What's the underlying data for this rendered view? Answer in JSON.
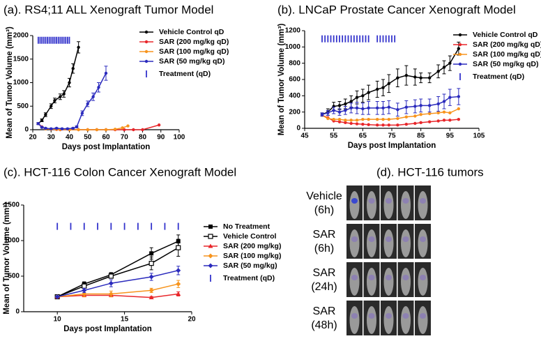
{
  "chart_data": [
    {
      "type": "line",
      "title": "(a). RS4;11 ALL Xenograft Tumor Model",
      "x_label": "Days post Implantation",
      "y_label": "Mean of Tumor Volume (mm³)",
      "xlim": [
        20,
        100
      ],
      "xticks": [
        20,
        30,
        40,
        50,
        60,
        70,
        80,
        90,
        100
      ],
      "ylim": [
        0,
        2000
      ],
      "yticks": [
        0,
        500,
        1000,
        1500,
        2000
      ],
      "series": [
        {
          "name": "Vehicle Control qD",
          "color": "#000000",
          "marker": "circle",
          "x": [
            23,
            25,
            27,
            30,
            32,
            35,
            37,
            40,
            42,
            45
          ],
          "values": [
            130,
            200,
            320,
            500,
            620,
            700,
            760,
            1000,
            1300,
            1750
          ],
          "errors": [
            20,
            30,
            40,
            50,
            50,
            60,
            70,
            90,
            100,
            120
          ]
        },
        {
          "name": "SAR (200 mg/kg qD)",
          "color": "#e8262a",
          "marker": "circle",
          "x": [
            23,
            25,
            27,
            30,
            33,
            35,
            40,
            45,
            50,
            55,
            60,
            65,
            70,
            75,
            80,
            89
          ],
          "values": [
            130,
            60,
            20,
            10,
            5,
            0,
            0,
            0,
            0,
            0,
            0,
            0,
            0,
            0,
            0,
            100
          ]
        },
        {
          "name": "SAR (100 mg/kg qD)",
          "color": "#f7941d",
          "marker": "circle",
          "x": [
            23,
            25,
            27,
            30,
            33,
            35,
            40,
            45,
            50,
            55,
            60,
            65,
            69,
            72
          ],
          "values": [
            130,
            50,
            20,
            10,
            10,
            5,
            0,
            0,
            0,
            0,
            0,
            10,
            40,
            80
          ]
        },
        {
          "name": "SAR (50 mg/kg qD)",
          "color": "#2b2bbd",
          "marker": "circle",
          "x": [
            23,
            25,
            27,
            30,
            33,
            36,
            39,
            42,
            44,
            47,
            50,
            53,
            56,
            60
          ],
          "values": [
            130,
            50,
            30,
            20,
            30,
            20,
            20,
            30,
            60,
            350,
            550,
            700,
            900,
            1200
          ],
          "errors": [
            20,
            15,
            10,
            10,
            10,
            10,
            10,
            15,
            20,
            50,
            60,
            80,
            100,
            150
          ]
        },
        {
          "name": "Treatment (qD)",
          "color": "#3333cc",
          "marker": "tick",
          "x": [
            23,
            24,
            25,
            26,
            27,
            28,
            29,
            30,
            31,
            32,
            33,
            34,
            35,
            36,
            37,
            38,
            39,
            40
          ],
          "values": [
            1900,
            1900,
            1900,
            1900,
            1900,
            1900,
            1900,
            1900,
            1900,
            1900,
            1900,
            1900,
            1900,
            1900,
            1900,
            1900,
            1900,
            1900
          ]
        }
      ]
    },
    {
      "type": "line",
      "title": "(b). LNCaP  Prostate Cancer Xenograft Model",
      "x_label": "Days post Implantation",
      "y_label": "Mean of Tumor Volume (mm³)",
      "xlim": [
        45,
        105
      ],
      "xticks": [
        45,
        55,
        65,
        75,
        85,
        95,
        105
      ],
      "ylim": [
        0,
        1200
      ],
      "yticks": [
        0,
        200,
        400,
        600,
        800,
        1000,
        1200
      ],
      "series": [
        {
          "name": "Vehicle Control qD",
          "color": "#000000",
          "marker": "circle",
          "x": [
            51,
            53,
            55,
            57,
            59,
            61,
            63,
            65,
            67,
            70,
            72,
            74,
            77,
            80,
            83,
            85,
            88,
            91,
            93,
            95,
            98
          ],
          "values": [
            170,
            200,
            270,
            280,
            300,
            330,
            380,
            400,
            440,
            480,
            500,
            550,
            620,
            650,
            630,
            620,
            620,
            700,
            750,
            800,
            980
          ],
          "errors": [
            20,
            40,
            50,
            50,
            60,
            70,
            80,
            80,
            90,
            100,
            100,
            110,
            110,
            120,
            100,
            60,
            60,
            80,
            80,
            90,
            80
          ]
        },
        {
          "name": "SAR (200 mg/kg qD)",
          "color": "#e8262a",
          "marker": "circle",
          "x": [
            51,
            53,
            55,
            57,
            59,
            61,
            63,
            65,
            67,
            70,
            72,
            74,
            77,
            80,
            83,
            85,
            88,
            91,
            93,
            95,
            98
          ],
          "values": [
            160,
            130,
            90,
            80,
            70,
            60,
            55,
            50,
            45,
            40,
            40,
            40,
            40,
            50,
            60,
            70,
            80,
            90,
            100,
            100,
            110
          ]
        },
        {
          "name": "SAR (100 mg/kg qD)",
          "color": "#f7941d",
          "marker": "circle",
          "x": [
            51,
            53,
            55,
            57,
            59,
            61,
            63,
            65,
            67,
            70,
            72,
            74,
            77,
            80,
            83,
            85,
            88,
            91,
            93,
            95,
            98
          ],
          "values": [
            160,
            120,
            110,
            110,
            100,
            100,
            100,
            110,
            110,
            110,
            110,
            110,
            120,
            140,
            150,
            170,
            180,
            190,
            200,
            190,
            240
          ]
        },
        {
          "name": "SAR (50 mg/kg qD)",
          "color": "#2b2bbd",
          "marker": "circle",
          "x": [
            51,
            53,
            55,
            57,
            59,
            61,
            63,
            65,
            67,
            70,
            72,
            74,
            77,
            80,
            83,
            85,
            88,
            91,
            93,
            95,
            98
          ],
          "values": [
            170,
            190,
            220,
            200,
            220,
            250,
            250,
            240,
            250,
            250,
            250,
            260,
            230,
            260,
            270,
            280,
            280,
            300,
            330,
            380,
            390
          ],
          "errors": [
            20,
            30,
            40,
            40,
            50,
            60,
            70,
            70,
            80,
            80,
            80,
            80,
            80,
            80,
            80,
            80,
            80,
            90,
            90,
            100,
            100
          ]
        },
        {
          "name": "Treatment (qD)",
          "color": "#3333cc",
          "marker": "tick",
          "x": [
            51,
            52,
            53,
            54,
            55,
            56,
            57,
            58,
            59,
            60,
            61,
            62,
            63,
            64,
            65,
            66,
            67,
            70,
            71,
            72,
            73,
            74,
            75,
            76
          ],
          "values": [
            1100,
            1100,
            1100,
            1100,
            1100,
            1100,
            1100,
            1100,
            1100,
            1100,
            1100,
            1100,
            1100,
            1100,
            1100,
            1100,
            1100,
            1100,
            1100,
            1100,
            1100,
            1100,
            1100,
            1100
          ]
        }
      ]
    },
    {
      "type": "line",
      "title": "(c). HCT-116 Colon Cancer Xenograft  Model",
      "x_label": "Days post Implantation",
      "y_label": "Mean of Tumor Volume (mm³)",
      "xlim": [
        7.5,
        20
      ],
      "xticks": [
        10,
        15,
        20
      ],
      "ylim": [
        0,
        1500
      ],
      "yticks": [
        0,
        500,
        1000,
        1500
      ],
      "series": [
        {
          "name": "No Treatment",
          "color": "#000000",
          "marker": "square",
          "x": [
            10,
            12,
            14,
            17,
            19
          ],
          "values": [
            210,
            390,
            520,
            820,
            990
          ],
          "errors": [
            15,
            30,
            30,
            80,
            90
          ]
        },
        {
          "name": "Vehicle Control",
          "color": "#000000",
          "marker": "open-square",
          "x": [
            10,
            12,
            14,
            17,
            19
          ],
          "values": [
            210,
            360,
            500,
            680,
            900
          ],
          "errors": [
            15,
            30,
            30,
            90,
            120
          ]
        },
        {
          "name": "SAR (200 mg/kg)",
          "color": "#e8262a",
          "marker": "triangle",
          "x": [
            10,
            12,
            14,
            17,
            19
          ],
          "values": [
            210,
            230,
            230,
            200,
            250
          ],
          "errors": [
            10,
            20,
            20,
            15,
            30
          ]
        },
        {
          "name": "SAR (100 mg/kg)",
          "color": "#f7941d",
          "marker": "diamond",
          "x": [
            10,
            12,
            14,
            17,
            19
          ],
          "values": [
            210,
            250,
            250,
            300,
            390
          ],
          "errors": [
            10,
            40,
            40,
            30,
            50
          ]
        },
        {
          "name": "SAR (50 mg/kg)",
          "color": "#2b2bbd",
          "marker": "diamond",
          "x": [
            10,
            12,
            14,
            17,
            19
          ],
          "values": [
            210,
            300,
            400,
            490,
            580
          ],
          "errors": [
            10,
            30,
            50,
            50,
            60
          ]
        },
        {
          "name": "Treatment (qD)",
          "color": "#3333cc",
          "marker": "tick",
          "x": [
            10,
            11,
            12,
            13,
            14,
            15,
            16,
            17,
            18,
            19
          ],
          "values": [
            1200,
            1200,
            1200,
            1200,
            1200,
            1200,
            1200,
            1200,
            1200,
            1200
          ]
        }
      ]
    }
  ],
  "image_panel": {
    "title": "(d). HCT-116 tumors",
    "rows": [
      [
        "Vehicle",
        "(6h)"
      ],
      [
        "SAR",
        "(6h)"
      ],
      [
        "SAR",
        "(24h)"
      ],
      [
        "SAR",
        "(48h)"
      ]
    ]
  }
}
